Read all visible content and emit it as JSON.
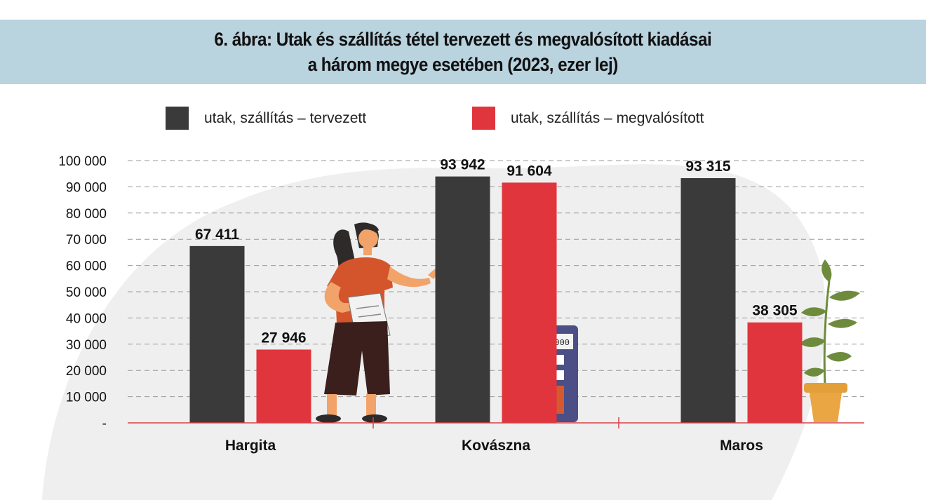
{
  "title": {
    "line1": "6. ábra: Utak és szállítás tétel tervezett és megvalósított kiadásai",
    "line2": "a három megye esetében (2023, ezer lej)"
  },
  "legend": [
    {
      "label": "utak, szállítás – tervezett",
      "color": "#3a3a3a"
    },
    {
      "label": "utak, szállítás – megvalósított",
      "color": "#e0353d"
    }
  ],
  "calculator_display": "10000",
  "chart_data": {
    "type": "bar",
    "title": "6. ábra: Utak és szállítás tétel tervezett és megvalósított kiadásai a három megye esetében (2023, ezer lej)",
    "categories": [
      "Hargita",
      "Kovászna",
      "Maros"
    ],
    "series": [
      {
        "name": "utak, szállítás – tervezett",
        "values": [
          67411,
          93942,
          93315
        ],
        "color": "#3a3a3a"
      },
      {
        "name": "utak, szállítás – megvalósított",
        "values": [
          27946,
          91604,
          38305
        ],
        "color": "#e0353d"
      }
    ],
    "data_labels": [
      [
        "67 411",
        "93 942",
        "93 315"
      ],
      [
        "27 946",
        "91 604",
        "38 305"
      ]
    ],
    "y_ticks": [
      0,
      10000,
      20000,
      30000,
      40000,
      50000,
      60000,
      70000,
      80000,
      90000,
      100000
    ],
    "y_tick_labels": [
      "-",
      "10 000",
      "20 000",
      "30 000",
      "40 000",
      "50 000",
      "60 000",
      "70 000",
      "80 000",
      "90 000",
      "100 000"
    ],
    "ylim": [
      0,
      100000
    ],
    "grid": true,
    "legend_position": "top"
  }
}
